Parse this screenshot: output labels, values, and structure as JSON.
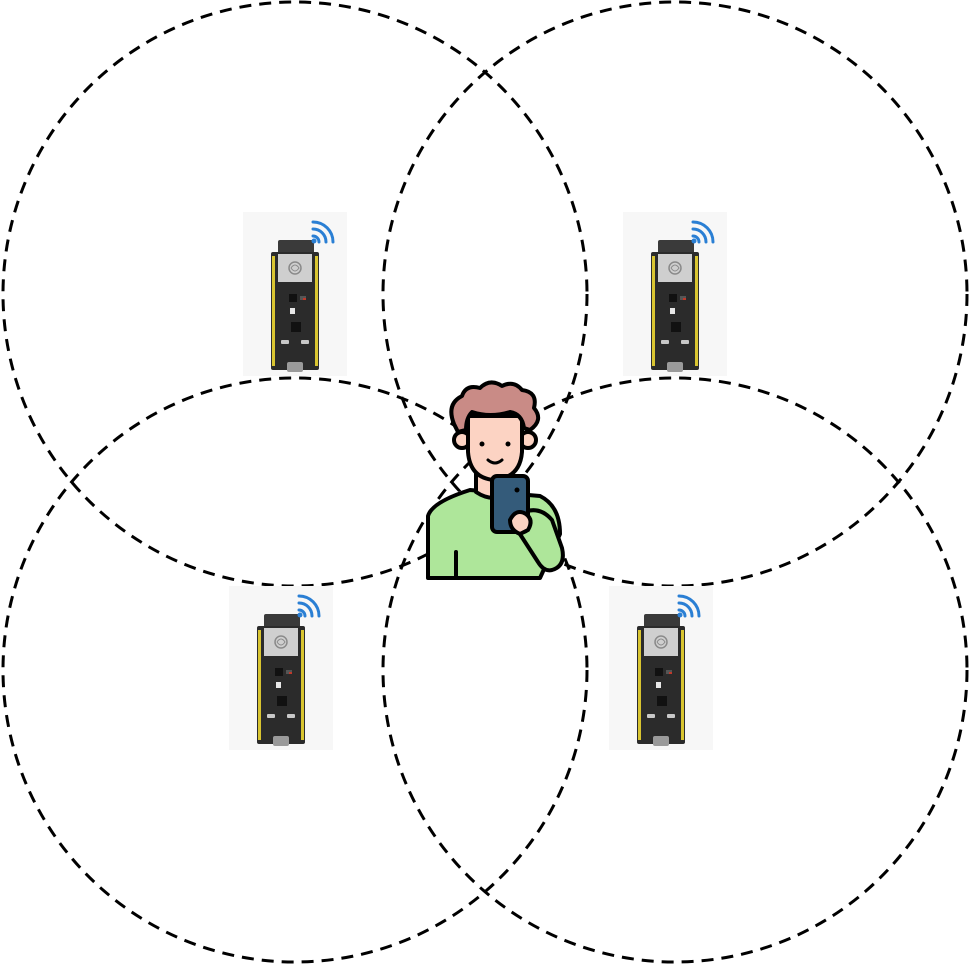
{
  "diagram": {
    "title": "",
    "colors": {
      "background": "#ffffff",
      "range_stroke": "#000000",
      "board_pcb": "#2b2b2b",
      "board_module": "#3a3a3a",
      "board_shield": "#cfcfcf",
      "board_pins": "#d9c531",
      "board_usb": "#9a9a9a",
      "board_tile": "#f7f7f7",
      "wifi_signal": "#2a7fd4",
      "person_skin": "#fcd3c3",
      "person_hair": "#c98b86",
      "person_shirt": "#aee69a",
      "person_phone": "#345b7a",
      "outline": "#000000"
    },
    "range_circles": [
      {
        "name": "range-circle-top-left"
      },
      {
        "name": "range-circle-top-right"
      },
      {
        "name": "range-circle-bottom-left"
      },
      {
        "name": "range-circle-bottom-right"
      }
    ],
    "devices": [
      {
        "name": "esp32-board-top-left",
        "icon": "esp32-board-icon",
        "signal_icon": "wifi-signal-icon"
      },
      {
        "name": "esp32-board-top-right",
        "icon": "esp32-board-icon",
        "signal_icon": "wifi-signal-icon"
      },
      {
        "name": "esp32-board-bottom-left",
        "icon": "esp32-board-icon",
        "signal_icon": "wifi-signal-icon"
      },
      {
        "name": "esp32-board-bottom-right",
        "icon": "esp32-board-icon",
        "signal_icon": "wifi-signal-icon"
      }
    ],
    "user": {
      "icon": "person-with-phone-icon"
    }
  }
}
